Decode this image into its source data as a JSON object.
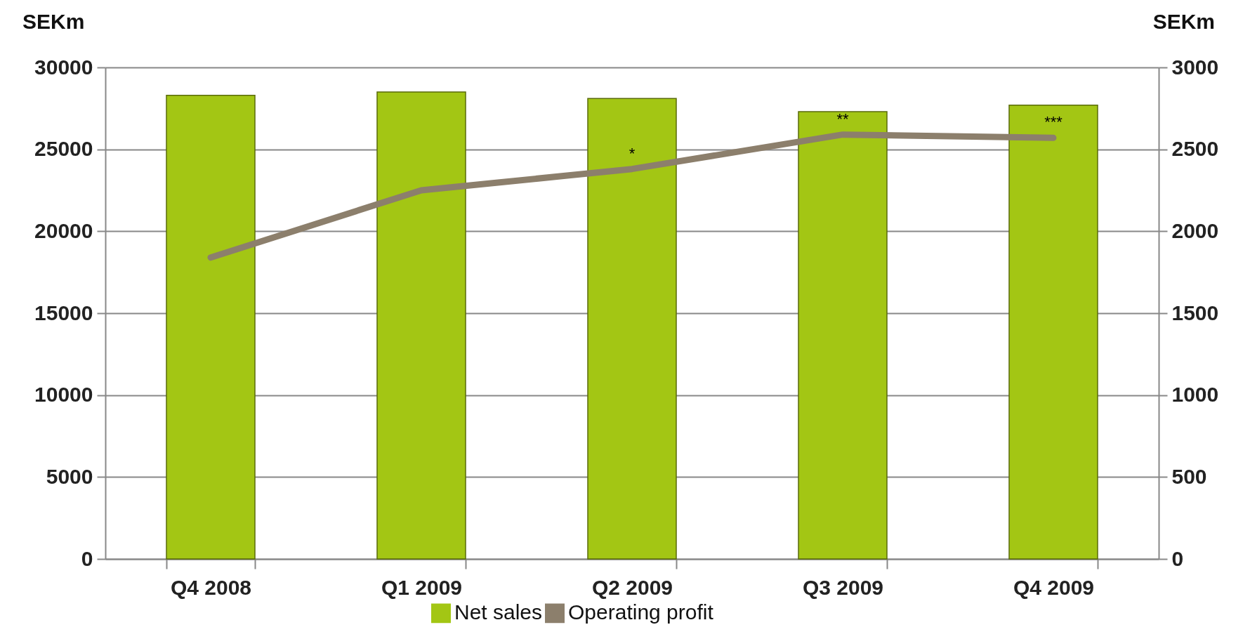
{
  "chart_data": {
    "type": "bar",
    "categories": [
      "Q4 2008",
      "Q1 2009",
      "Q2 2009",
      "Q3 2009",
      "Q4 2009"
    ],
    "series": [
      {
        "name": "Net sales",
        "color": "#a3c614",
        "values": [
          28300,
          28500,
          28100,
          27300,
          27700
        ]
      },
      {
        "name": "Operating profit",
        "type": "line",
        "axis": "y2",
        "color": "#8c7f6c",
        "values": [
          1840,
          2250,
          2380,
          2590,
          2570
        ]
      }
    ],
    "ylabel": "SEKm",
    "y2label": "SEKm",
    "ylim": [
      0,
      30000
    ],
    "yticks": [
      0,
      5000,
      10000,
      15000,
      20000,
      25000,
      30000
    ],
    "y2lim": [
      0,
      3000
    ],
    "y2ticks": [
      0,
      500,
      1000,
      1500,
      2000,
      2500,
      3000
    ],
    "grid": "y",
    "legend": "bottom",
    "marker": "none",
    "annotations": [
      "*",
      "**",
      "***"
    ]
  }
}
